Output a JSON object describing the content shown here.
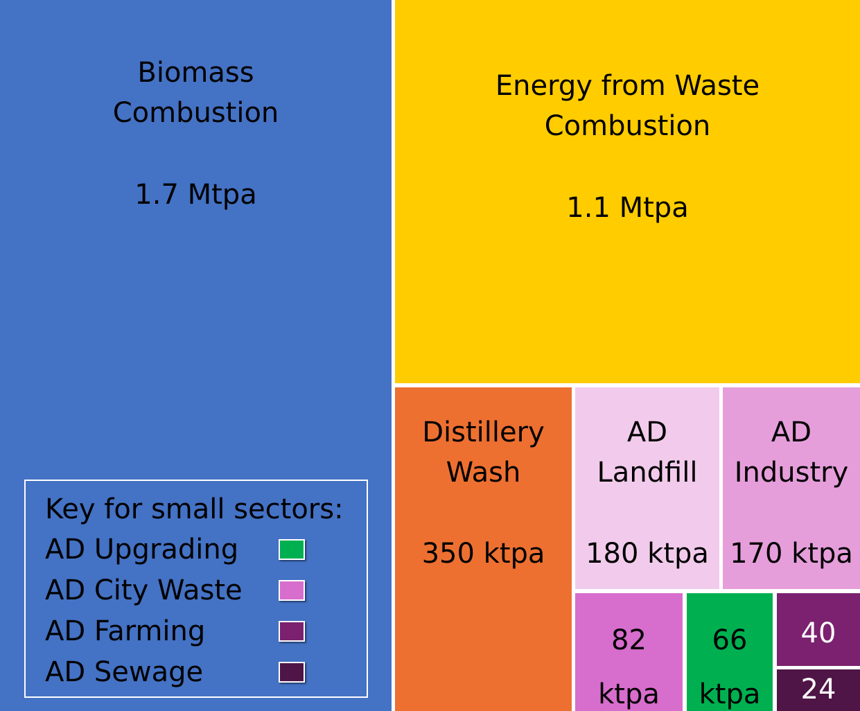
{
  "chart_data": {
    "type": "treemap",
    "tiles": [
      {
        "id": "biomass",
        "label": "Biomass\nCombustion",
        "value_label": "1.7 Mtpa",
        "value": 1700,
        "color": "#4472C4",
        "text_color": "#000000"
      },
      {
        "id": "efw",
        "label": "Energy from Waste\nCombustion",
        "value_label": "1.1 Mtpa",
        "value": 1100,
        "color": "#FFCC00",
        "text_color": "#000000"
      },
      {
        "id": "distillery",
        "label": "Distillery\nWash",
        "value_label": "350 ktpa",
        "value": 350,
        "color": "#ED7031",
        "text_color": "#000000"
      },
      {
        "id": "landfill",
        "label": "AD\nLandfill",
        "value_label": "180 ktpa",
        "value": 180,
        "color": "#F2CBEC",
        "text_color": "#000000"
      },
      {
        "id": "industry",
        "label": "AD\nIndustry",
        "value_label": "170 ktpa",
        "value": 170,
        "color": "#E69EDB",
        "text_color": "#000000"
      },
      {
        "id": "citywaste",
        "label": "",
        "value_label": "82\nktpa",
        "value": 82,
        "color": "#D76DCC",
        "text_color": "#000000"
      },
      {
        "id": "upgrading",
        "label": "",
        "value_label": "66\nktpa",
        "value": 66,
        "color": "#00B050",
        "text_color": "#000000"
      },
      {
        "id": "farming",
        "label": "",
        "value_label": "40",
        "value": 40,
        "color": "#7B2170",
        "text_color": "#ffffff"
      },
      {
        "id": "sewage",
        "label": "",
        "value_label": "24",
        "value": 24,
        "color": "#4F1546",
        "text_color": "#ffffff"
      }
    ],
    "legend": {
      "title": "Key for small sectors:",
      "items": [
        {
          "label": "AD Upgrading",
          "color": "#00B050"
        },
        {
          "label": "AD City Waste",
          "color": "#D76DCC"
        },
        {
          "label": "AD Farming",
          "color": "#7B2170"
        },
        {
          "label": "AD Sewage",
          "color": "#4F1546"
        }
      ]
    }
  }
}
